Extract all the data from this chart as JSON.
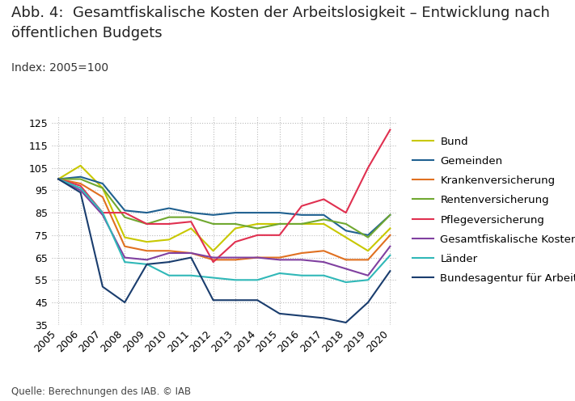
{
  "title_line1": "Abb. 4:  Gesamtfiskalische Kosten der Arbeitslosigkeit – Entwicklung nach",
  "title_line2": "öffentlichen Budgets",
  "subtitle": "Index: 2005=100",
  "source": "Quelle: Berechnungen des IAB. © IAB",
  "years": [
    2005,
    2006,
    2007,
    2008,
    2009,
    2010,
    2011,
    2012,
    2013,
    2014,
    2015,
    2016,
    2017,
    2018,
    2019,
    2020
  ],
  "series": [
    {
      "name": "Bund",
      "color": "#c8c800",
      "values": [
        100,
        106,
        96,
        74,
        72,
        73,
        78,
        68,
        78,
        80,
        80,
        80,
        80,
        74,
        68,
        78
      ]
    },
    {
      "name": "Gemeinden",
      "color": "#1f6090",
      "values": [
        100,
        101,
        98,
        86,
        85,
        87,
        85,
        84,
        85,
        85,
        85,
        84,
        84,
        77,
        75,
        84
      ]
    },
    {
      "name": "Krankenversicherung",
      "color": "#e07020",
      "values": [
        100,
        98,
        92,
        70,
        68,
        68,
        67,
        64,
        64,
        65,
        65,
        67,
        68,
        64,
        64,
        75
      ]
    },
    {
      "name": "Rentenversicherung",
      "color": "#70a830",
      "values": [
        100,
        100,
        96,
        83,
        80,
        83,
        83,
        80,
        80,
        78,
        80,
        80,
        82,
        80,
        74,
        84
      ]
    },
    {
      "name": "Pflegeversicherung",
      "color": "#e03050",
      "values": [
        100,
        97,
        85,
        85,
        80,
        80,
        81,
        63,
        72,
        75,
        75,
        88,
        91,
        85,
        105,
        122
      ]
    },
    {
      "name": "Gesamtfiskalische Kosten",
      "color": "#8040a0",
      "values": [
        100,
        95,
        84,
        65,
        64,
        67,
        67,
        65,
        65,
        65,
        64,
        64,
        63,
        60,
        57,
        70
      ]
    },
    {
      "name": "Länder",
      "color": "#30b8b8",
      "values": [
        100,
        96,
        85,
        63,
        62,
        57,
        57,
        56,
        55,
        55,
        58,
        57,
        57,
        54,
        55,
        66
      ]
    },
    {
      "name": "Bundesagentur für Arbeit",
      "color": "#1a3d6e",
      "values": [
        100,
        94,
        52,
        45,
        62,
        63,
        65,
        46,
        46,
        46,
        40,
        39,
        38,
        36,
        45,
        59
      ]
    }
  ],
  "ylim": [
    35,
    128
  ],
  "yticks": [
    35,
    45,
    55,
    65,
    75,
    85,
    95,
    105,
    115,
    125
  ],
  "background_color": "#ffffff",
  "grid_color": "#bbbbbb",
  "title_fontsize": 13,
  "subtitle_fontsize": 10,
  "tick_fontsize": 9,
  "legend_fontsize": 9.5,
  "source_fontsize": 8.5
}
